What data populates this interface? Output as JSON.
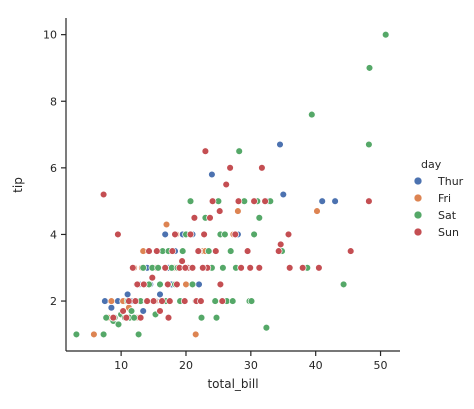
{
  "chart_data": {
    "type": "scatter",
    "title": "",
    "xlabel": "total_bill",
    "ylabel": "tip",
    "xlim": [
      1.5,
      53
    ],
    "ylim": [
      0.5,
      10.5
    ],
    "xticks": [
      "10",
      "20",
      "30",
      "40",
      "50"
    ],
    "yticks": [
      "2",
      "4",
      "6",
      "8",
      "10"
    ],
    "grid": false,
    "legend": {
      "title": "day",
      "placement": "right"
    },
    "hue_categories": [
      "Thur",
      "Fri",
      "Sat",
      "Sun"
    ],
    "colors": {
      "Thur": "#4c72b0",
      "Fri": "#dd8452",
      "Sat": "#55a868",
      "Sun": "#c44e52"
    },
    "series": [
      {
        "name": "Thur",
        "points": [
          [
            7.5,
            2.0
          ],
          [
            8.5,
            1.8
          ],
          [
            9.5,
            2.0
          ],
          [
            10.2,
            1.7
          ],
          [
            10.7,
            2.0
          ],
          [
            11.0,
            2.2
          ],
          [
            11.5,
            2.0
          ],
          [
            12.0,
            1.5
          ],
          [
            12.4,
            2.0
          ],
          [
            12.8,
            2.5
          ],
          [
            13.0,
            2.0
          ],
          [
            13.4,
            1.7
          ],
          [
            13.8,
            2.0
          ],
          [
            14.0,
            3.0
          ],
          [
            14.5,
            2.5
          ],
          [
            15.0,
            2.0
          ],
          [
            15.5,
            3.0
          ],
          [
            16.0,
            2.2
          ],
          [
            16.3,
            3.5
          ],
          [
            16.8,
            4.0
          ],
          [
            17.3,
            3.0
          ],
          [
            17.8,
            2.5
          ],
          [
            18.3,
            3.5
          ],
          [
            18.8,
            3.0
          ],
          [
            19.5,
            4.0
          ],
          [
            20.3,
            3.0
          ],
          [
            21.0,
            4.0
          ],
          [
            22.0,
            2.5
          ],
          [
            22.8,
            3.5
          ],
          [
            24.0,
            5.8
          ],
          [
            25.5,
            4.0
          ],
          [
            28.0,
            4.0
          ],
          [
            34.5,
            6.7
          ],
          [
            35.0,
            5.2
          ],
          [
            41.0,
            5.0
          ],
          [
            43.0,
            5.0
          ],
          [
            32.7,
            5.0
          ],
          [
            15.4,
            2.0
          ],
          [
            12.6,
            1.5
          ],
          [
            18.0,
            3.0
          ]
        ]
      },
      {
        "name": "Fri",
        "points": [
          [
            5.8,
            1.0
          ],
          [
            8.0,
            1.5
          ],
          [
            8.5,
            2.0
          ],
          [
            11.2,
            1.8
          ],
          [
            12.0,
            3.0
          ],
          [
            12.3,
            1.5
          ],
          [
            13.0,
            2.0
          ],
          [
            13.4,
            3.5
          ],
          [
            13.8,
            2.5
          ],
          [
            15.2,
            2.0
          ],
          [
            16.3,
            3.5
          ],
          [
            17.0,
            4.3
          ],
          [
            18.2,
            3.0
          ],
          [
            18.5,
            4.0
          ],
          [
            20.0,
            2.5
          ],
          [
            21.0,
            3.0
          ],
          [
            22.5,
            3.5
          ],
          [
            23.0,
            3.5
          ],
          [
            27.3,
            4.0
          ],
          [
            28.0,
            4.7
          ],
          [
            40.2,
            4.7
          ],
          [
            10.3,
            2.0
          ],
          [
            21.5,
            1.0
          ],
          [
            13.2,
            3.0
          ],
          [
            15.4,
            3.0
          ]
        ]
      },
      {
        "name": "Sat",
        "points": [
          [
            3.1,
            1.0
          ],
          [
            7.3,
            1.0
          ],
          [
            7.7,
            1.5
          ],
          [
            8.8,
            1.4
          ],
          [
            9.0,
            1.5
          ],
          [
            9.6,
            1.3
          ],
          [
            10.0,
            1.6
          ],
          [
            10.3,
            1.7
          ],
          [
            10.6,
            1.5
          ],
          [
            11.0,
            2.0
          ],
          [
            11.3,
            1.5
          ],
          [
            11.6,
            1.7
          ],
          [
            12.0,
            1.5
          ],
          [
            12.4,
            2.5
          ],
          [
            12.7,
            1.0
          ],
          [
            13.0,
            2.0
          ],
          [
            13.4,
            3.0
          ],
          [
            13.9,
            2.0
          ],
          [
            14.3,
            2.5
          ],
          [
            14.8,
            3.0
          ],
          [
            15.0,
            2.0
          ],
          [
            15.3,
            1.6
          ],
          [
            15.7,
            3.0
          ],
          [
            16.0,
            2.5
          ],
          [
            16.4,
            3.5
          ],
          [
            16.9,
            2.0
          ],
          [
            17.3,
            3.5
          ],
          [
            17.8,
            3.0
          ],
          [
            18.3,
            2.5
          ],
          [
            18.7,
            3.0
          ],
          [
            19.1,
            2.0
          ],
          [
            19.5,
            3.5
          ],
          [
            20.0,
            4.0
          ],
          [
            20.5,
            3.0
          ],
          [
            21.0,
            2.5
          ],
          [
            21.5,
            2.0
          ],
          [
            22.0,
            3.5
          ],
          [
            22.4,
            1.5
          ],
          [
            23.0,
            4.5
          ],
          [
            23.5,
            3.5
          ],
          [
            24.0,
            3.0
          ],
          [
            24.5,
            2.0
          ],
          [
            25.0,
            5.0
          ],
          [
            25.3,
            4.0
          ],
          [
            25.7,
            3.0
          ],
          [
            26.0,
            4.0
          ],
          [
            26.3,
            2.0
          ],
          [
            26.9,
            3.5
          ],
          [
            27.2,
            2.0
          ],
          [
            27.7,
            3.0
          ],
          [
            28.2,
            6.5
          ],
          [
            28.5,
            3.0
          ],
          [
            29.0,
            5.0
          ],
          [
            29.8,
            2.0
          ],
          [
            30.1,
            2.0
          ],
          [
            30.5,
            4.0
          ],
          [
            31.0,
            5.0
          ],
          [
            31.3,
            4.5
          ],
          [
            32.4,
            1.2
          ],
          [
            33.0,
            5.0
          ],
          [
            34.8,
            3.5
          ],
          [
            38.0,
            3.0
          ],
          [
            38.7,
            3.0
          ],
          [
            39.4,
            7.6
          ],
          [
            44.3,
            2.5
          ],
          [
            48.2,
            6.7
          ],
          [
            48.3,
            9.0
          ],
          [
            50.8,
            10.0
          ],
          [
            24.7,
            1.5
          ],
          [
            20.7,
            5.0
          ]
        ]
      },
      {
        "name": "Sun",
        "points": [
          [
            7.3,
            5.2
          ],
          [
            8.8,
            1.5
          ],
          [
            9.5,
            4.0
          ],
          [
            10.3,
            1.7
          ],
          [
            10.8,
            1.5
          ],
          [
            11.2,
            2.0
          ],
          [
            11.8,
            3.0
          ],
          [
            12.5,
            2.5
          ],
          [
            13.0,
            1.5
          ],
          [
            13.5,
            2.5
          ],
          [
            14.0,
            2.0
          ],
          [
            14.3,
            3.5
          ],
          [
            14.8,
            2.7
          ],
          [
            15.0,
            2.0
          ],
          [
            15.5,
            3.5
          ],
          [
            16.0,
            1.7
          ],
          [
            16.3,
            2.0
          ],
          [
            16.8,
            3.0
          ],
          [
            17.3,
            1.5
          ],
          [
            17.5,
            2.0
          ],
          [
            17.9,
            3.5
          ],
          [
            18.3,
            4.0
          ],
          [
            18.6,
            2.5
          ],
          [
            19.0,
            3.0
          ],
          [
            19.4,
            3.2
          ],
          [
            19.8,
            2.0
          ],
          [
            20.3,
            3.0
          ],
          [
            20.7,
            4.0
          ],
          [
            21.0,
            3.0
          ],
          [
            21.3,
            4.5
          ],
          [
            21.6,
            2.0
          ],
          [
            21.9,
            3.5
          ],
          [
            22.3,
            2.0
          ],
          [
            22.8,
            4.0
          ],
          [
            23.0,
            6.5
          ],
          [
            23.3,
            3.0
          ],
          [
            23.7,
            4.5
          ],
          [
            24.1,
            5.0
          ],
          [
            24.6,
            3.5
          ],
          [
            25.2,
            4.7
          ],
          [
            25.6,
            2.0
          ],
          [
            26.2,
            5.5
          ],
          [
            26.8,
            6.0
          ],
          [
            27.6,
            4.0
          ],
          [
            28.1,
            5.0
          ],
          [
            28.5,
            3.0
          ],
          [
            29.5,
            3.5
          ],
          [
            29.9,
            3.0
          ],
          [
            30.5,
            5.0
          ],
          [
            31.3,
            3.0
          ],
          [
            31.7,
            6.0
          ],
          [
            32.2,
            5.0
          ],
          [
            34.3,
            3.5
          ],
          [
            34.6,
            3.7
          ],
          [
            35.8,
            4.0
          ],
          [
            36.0,
            3.0
          ],
          [
            38.0,
            3.0
          ],
          [
            40.5,
            3.0
          ],
          [
            45.4,
            3.5
          ],
          [
            48.2,
            5.0
          ],
          [
            25.3,
            2.5
          ],
          [
            19.9,
            3.0
          ],
          [
            12.2,
            2.0
          ],
          [
            17.2,
            2.5
          ],
          [
            22.6,
            3.0
          ]
        ]
      }
    ]
  }
}
